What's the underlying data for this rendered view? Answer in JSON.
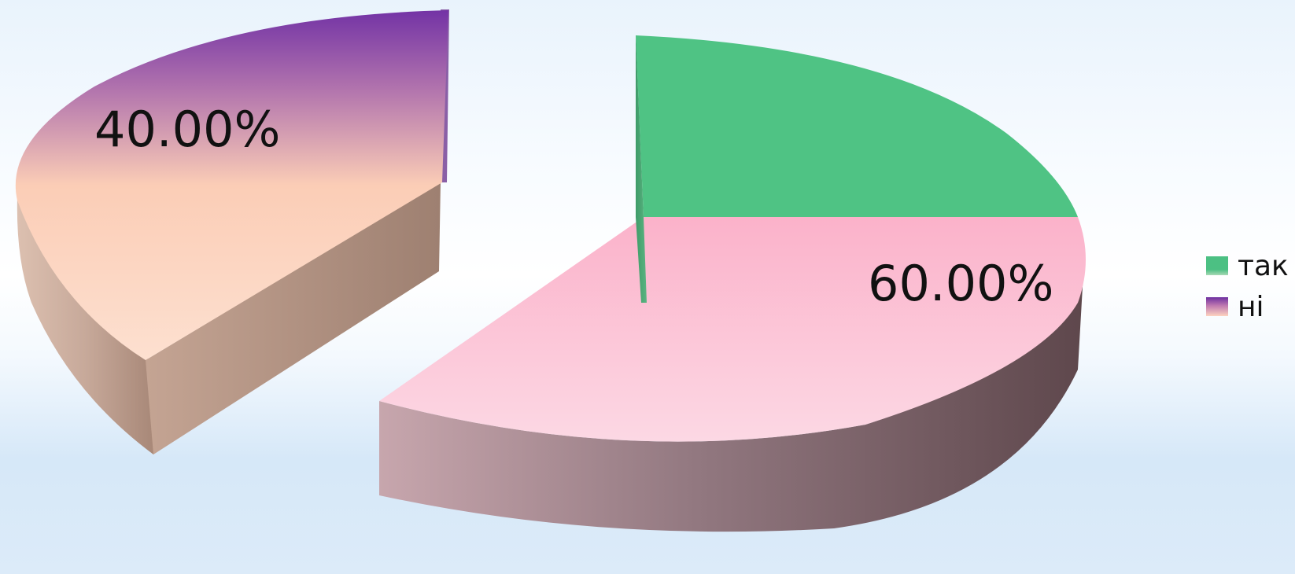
{
  "chart_data": {
    "type": "pie",
    "categories": [
      "так",
      "ні"
    ],
    "values": [
      60,
      40
    ],
    "data_labels": [
      "60.00%",
      "40.00%"
    ],
    "legend_position": "right",
    "colors": {
      "так_top_green": "#4fc384",
      "так_top_pink": "#fbb6cd",
      "ні_top_purple": "#7333a5",
      "ні_top_peach": "#fcd0b8"
    }
  }
}
